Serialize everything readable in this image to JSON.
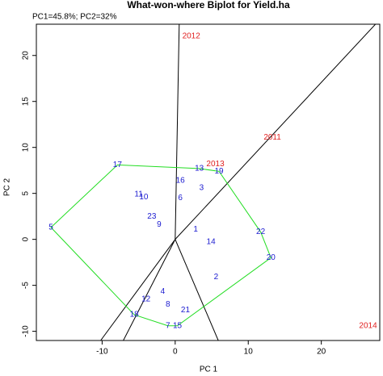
{
  "chart_data": {
    "type": "biplot",
    "title": "What-won-where Biplot for Yield.ha",
    "subtitle": "PC1=45.8%; PC2=32%",
    "x_label": "PC 1",
    "y_label": "PC 2",
    "xlim": [
      -19,
      28
    ],
    "ylim": [
      -11,
      23.4
    ],
    "xticks": [
      -10,
      0,
      10,
      20
    ],
    "yticks": [
      -10,
      -5,
      0,
      5,
      10,
      15,
      20
    ],
    "genotypes": {
      "color": "#1a1ad0",
      "labels": [
        "1",
        "2",
        "3",
        "4",
        "5",
        "6",
        "7",
        "8",
        "9",
        "10",
        "11",
        "12",
        "13",
        "14",
        "15",
        "16",
        "17",
        "18",
        "19",
        "20",
        "21",
        "22",
        "23"
      ],
      "x": [
        2.8,
        5.6,
        3.6,
        -1.7,
        -17,
        0.7,
        -1.0,
        -1.0,
        -2.2,
        -4.3,
        -5.0,
        -4.0,
        3.3,
        4.9,
        0.3,
        0.7,
        -7.9,
        -5.6,
        6.0,
        13.1,
        1.4,
        11.7,
        -3.2
      ],
      "y": [
        1.1,
        -4.1,
        5.6,
        -5.7,
        1.3,
        4.5,
        -9.4,
        -7.1,
        1.6,
        4.6,
        4.9,
        -6.5,
        7.7,
        -0.3,
        -9.4,
        6.4,
        8.1,
        -8.2,
        7.4,
        -2.0,
        -7.7,
        0.8,
        2.5
      ]
    },
    "environments": {
      "color": "#e02020",
      "labels": [
        "2011",
        "2012",
        "2013",
        "2014"
      ],
      "x": [
        13.3,
        2.2,
        5.5,
        26.4
      ],
      "y": [
        11.1,
        22.1,
        8.2,
        -9.4
      ]
    },
    "hull": {
      "color": "#22dd22",
      "vertices": [
        4,
        16,
        12,
        18,
        21,
        19,
        14,
        6,
        17
      ]
    },
    "rays": {
      "color": "#000000",
      "x": [
        0.55,
        28,
        -10.2,
        -7.1,
        5.9
      ],
      "y": [
        23.4,
        23.9,
        -11,
        -11,
        -11
      ]
    }
  }
}
